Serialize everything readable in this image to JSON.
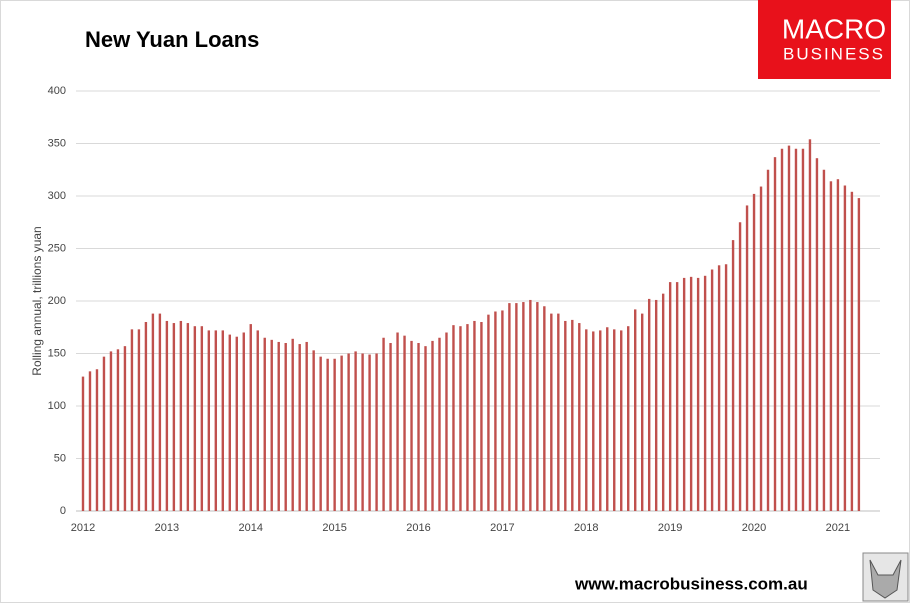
{
  "chart_data": {
    "type": "bar",
    "title": "New Yuan Loans",
    "y_label": "Rolling annual, trillions yuan",
    "categories": [
      "2012",
      null,
      null,
      null,
      null,
      null,
      null,
      null,
      null,
      null,
      null,
      null,
      "2013",
      null,
      null,
      null,
      null,
      null,
      null,
      null,
      null,
      null,
      null,
      null,
      "2014",
      null,
      null,
      null,
      null,
      null,
      null,
      null,
      null,
      null,
      null,
      null,
      "2015",
      null,
      null,
      null,
      null,
      null,
      null,
      null,
      null,
      null,
      null,
      null,
      "2016",
      null,
      null,
      null,
      null,
      null,
      null,
      null,
      null,
      null,
      null,
      null,
      "2017",
      null,
      null,
      null,
      null,
      null,
      null,
      null,
      null,
      null,
      null,
      null,
      "2018",
      null,
      null,
      null,
      null,
      null,
      null,
      null,
      null,
      null,
      null,
      null,
      "2019",
      null,
      null,
      null,
      null,
      null,
      null,
      null,
      null,
      null,
      null,
      null,
      "2020",
      null,
      null,
      null,
      null,
      null,
      null,
      null,
      null,
      null,
      null,
      null,
      "2021",
      null,
      null,
      null
    ],
    "values": [
      128,
      133,
      135,
      147,
      152,
      154,
      157,
      173,
      173,
      180,
      188,
      188,
      181,
      179,
      181,
      179,
      176,
      176,
      172,
      172,
      172,
      168,
      166,
      170,
      178,
      172,
      165,
      163,
      161,
      160,
      164,
      159,
      161,
      153,
      147,
      145,
      145,
      148,
      150,
      152,
      150,
      149,
      150,
      165,
      160,
      170,
      167,
      162,
      160,
      157,
      162,
      165,
      170,
      177,
      176,
      178,
      181,
      180,
      187,
      190,
      191,
      198,
      198,
      199,
      201,
      199,
      195,
      188,
      188,
      181,
      182,
      179,
      173,
      171,
      172,
      175,
      173,
      172,
      176,
      192,
      188,
      202,
      201,
      207,
      218,
      218,
      222,
      223,
      222,
      224,
      230,
      234,
      235,
      258,
      275,
      291,
      302,
      309,
      325,
      337,
      345,
      348,
      345,
      345,
      354,
      336,
      325,
      314,
      316,
      310,
      304,
      298
    ],
    "color": "#c0504d",
    "ylim": [
      0,
      400
    ],
    "yticks": [
      0,
      50,
      100,
      150,
      200,
      250,
      300,
      350,
      400
    ],
    "grid": true
  },
  "logo": {
    "line1": "MACRO",
    "line2": "BUSINESS"
  },
  "footer": "www.macrobusiness.com.au"
}
